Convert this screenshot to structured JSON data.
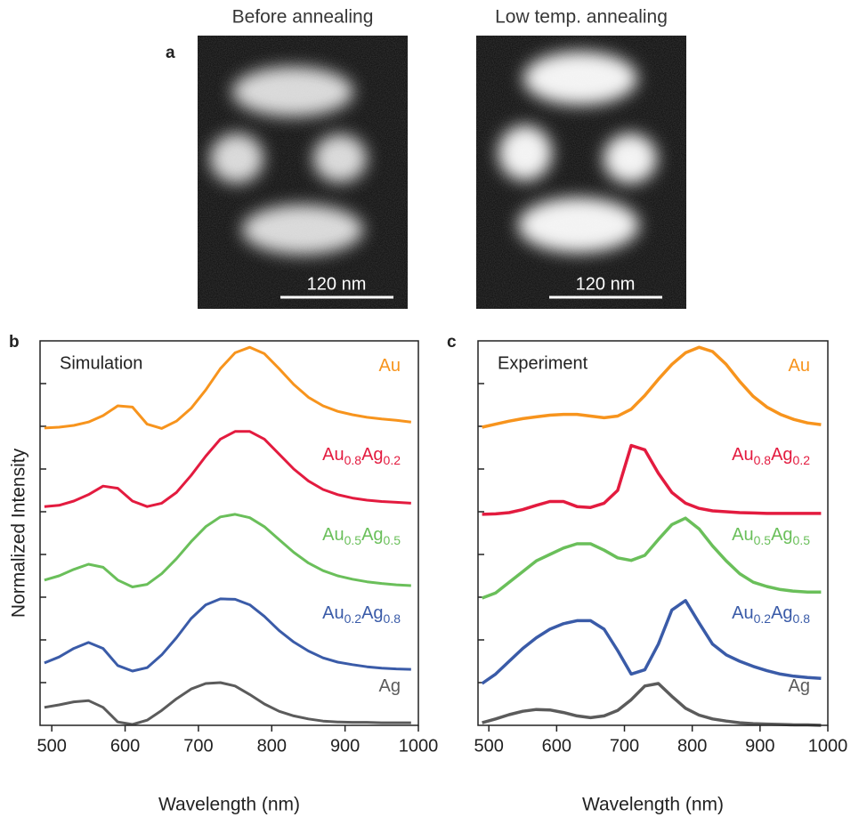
{
  "panel_a": {
    "letter": "a",
    "titles": [
      "Before annealing",
      "Low temp. annealing"
    ],
    "scale_labels": [
      "120 nm",
      "120 nm"
    ]
  },
  "chart_data": [
    {
      "type": "line",
      "panel": "b",
      "title": "Simulation",
      "xlabel": "Wavelength (nm)",
      "ylabel": "Normalized Intensity",
      "x": [
        490,
        510,
        530,
        550,
        570,
        590,
        610,
        630,
        650,
        670,
        690,
        710,
        730,
        750,
        770,
        790,
        810,
        830,
        850,
        870,
        890,
        910,
        930,
        950,
        970,
        990
      ],
      "xlim": [
        484,
        1000
      ],
      "xticks": [
        500,
        600,
        700,
        800,
        900,
        1000
      ],
      "ylim": [
        0,
        9
      ],
      "yticks": [
        1,
        2,
        3,
        4,
        5,
        6,
        7,
        8
      ],
      "series": [
        {
          "name": "Au",
          "color": "#f7941d",
          "values": [
            6.96,
            6.98,
            7.02,
            7.1,
            7.25,
            7.48,
            7.45,
            7.05,
            6.95,
            7.12,
            7.42,
            7.85,
            8.35,
            8.72,
            8.85,
            8.7,
            8.35,
            7.98,
            7.68,
            7.48,
            7.35,
            7.27,
            7.21,
            7.17,
            7.14,
            7.1
          ]
        },
        {
          "name": "Au0.8Ag0.2",
          "color": "#e31b3f",
          "values": [
            5.12,
            5.15,
            5.25,
            5.4,
            5.6,
            5.55,
            5.25,
            5.12,
            5.2,
            5.45,
            5.85,
            6.3,
            6.7,
            6.88,
            6.88,
            6.7,
            6.35,
            6.0,
            5.72,
            5.52,
            5.4,
            5.32,
            5.27,
            5.24,
            5.22,
            5.2
          ]
        },
        {
          "name": "Au0.5Ag0.5",
          "color": "#6abf5a",
          "values": [
            3.4,
            3.5,
            3.65,
            3.77,
            3.7,
            3.4,
            3.24,
            3.3,
            3.55,
            3.9,
            4.3,
            4.65,
            4.88,
            4.94,
            4.86,
            4.65,
            4.35,
            4.05,
            3.8,
            3.62,
            3.5,
            3.42,
            3.36,
            3.32,
            3.29,
            3.27
          ]
        },
        {
          "name": "Au0.2Ag0.8",
          "color": "#3a5ba8",
          "values": [
            1.46,
            1.6,
            1.8,
            1.94,
            1.8,
            1.4,
            1.27,
            1.35,
            1.65,
            2.05,
            2.5,
            2.82,
            2.96,
            2.95,
            2.82,
            2.55,
            2.22,
            1.95,
            1.74,
            1.58,
            1.48,
            1.42,
            1.37,
            1.34,
            1.32,
            1.31
          ]
        },
        {
          "name": "Ag",
          "color": "#5b5b5b",
          "values": [
            0.42,
            0.48,
            0.55,
            0.58,
            0.42,
            0.08,
            0.02,
            0.12,
            0.35,
            0.62,
            0.85,
            0.98,
            1.0,
            0.92,
            0.72,
            0.5,
            0.33,
            0.22,
            0.15,
            0.1,
            0.08,
            0.07,
            0.07,
            0.06,
            0.06,
            0.06
          ]
        }
      ]
    },
    {
      "type": "line",
      "panel": "c",
      "title": "Experiment",
      "xlabel": "Wavelength (nm)",
      "x": [
        490,
        510,
        530,
        550,
        570,
        590,
        610,
        630,
        650,
        670,
        690,
        710,
        730,
        750,
        770,
        790,
        810,
        830,
        850,
        870,
        890,
        910,
        930,
        950,
        970,
        990
      ],
      "xlim": [
        484,
        1000
      ],
      "xticks": [
        500,
        600,
        700,
        800,
        900,
        1000
      ],
      "ylim": [
        0,
        9
      ],
      "yticks": [
        1,
        2,
        3,
        4,
        5,
        6,
        7,
        8
      ],
      "series": [
        {
          "name": "Au",
          "color": "#f7941d",
          "values": [
            6.98,
            7.05,
            7.12,
            7.18,
            7.22,
            7.26,
            7.28,
            7.28,
            7.24,
            7.2,
            7.24,
            7.4,
            7.72,
            8.1,
            8.45,
            8.72,
            8.85,
            8.75,
            8.45,
            8.05,
            7.7,
            7.45,
            7.28,
            7.16,
            7.08,
            7.04
          ]
        },
        {
          "name": "Au0.8Ag0.2",
          "color": "#e31b3f",
          "values": [
            4.94,
            4.95,
            4.98,
            5.05,
            5.15,
            5.24,
            5.24,
            5.12,
            5.1,
            5.2,
            5.5,
            6.55,
            6.45,
            5.9,
            5.45,
            5.2,
            5.08,
            5.02,
            5.0,
            4.98,
            4.97,
            4.96,
            4.96,
            4.96,
            4.96,
            4.96
          ]
        },
        {
          "name": "Au0.5Ag0.5",
          "color": "#6abf5a",
          "values": [
            2.98,
            3.1,
            3.35,
            3.6,
            3.85,
            4.0,
            4.15,
            4.25,
            4.25,
            4.1,
            3.92,
            3.86,
            3.98,
            4.35,
            4.7,
            4.85,
            4.6,
            4.2,
            3.85,
            3.55,
            3.35,
            3.25,
            3.18,
            3.14,
            3.12,
            3.12
          ]
        },
        {
          "name": "Au0.2Ag0.8",
          "color": "#3a5ba8",
          "values": [
            0.98,
            1.2,
            1.5,
            1.8,
            2.05,
            2.25,
            2.38,
            2.45,
            2.45,
            2.25,
            1.75,
            1.2,
            1.3,
            1.9,
            2.7,
            2.92,
            2.4,
            1.9,
            1.65,
            1.5,
            1.38,
            1.28,
            1.2,
            1.15,
            1.12,
            1.1
          ]
        },
        {
          "name": "Ag",
          "color": "#5b5b5b",
          "values": [
            0.06,
            0.15,
            0.25,
            0.33,
            0.37,
            0.36,
            0.3,
            0.22,
            0.18,
            0.22,
            0.35,
            0.6,
            0.92,
            0.98,
            0.68,
            0.4,
            0.24,
            0.15,
            0.1,
            0.06,
            0.04,
            0.03,
            0.02,
            0.01,
            0.01,
            0.0
          ]
        }
      ]
    }
  ]
}
